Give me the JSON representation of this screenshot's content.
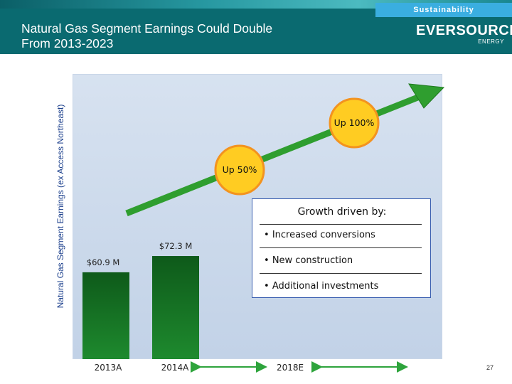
{
  "header": {
    "title_line1": "Natural Gas Segment Earnings Could Double",
    "title_line2": "From 2013-2023",
    "section": "Sustainability",
    "logo": "EVERSOURCE",
    "logo_sub": "ENERGY"
  },
  "chart_data": {
    "type": "bar",
    "ylabel": "Natural Gas Segment Earnings (ex Access Northeast)",
    "categories": [
      "2013A",
      "2014A",
      "2018E"
    ],
    "values": [
      60.9,
      72.3,
      null
    ],
    "data_labels": [
      "$60.9 M",
      "$72.3 M",
      ""
    ],
    "ylim": [
      0,
      200
    ],
    "annotations": [
      "Up 50%",
      "Up 100%"
    ],
    "colors": {
      "bar_top": "#0e5a1a",
      "bar_bottom": "#1e8a2e",
      "arrow": "#2f9e2f",
      "badge": "#ffcc22",
      "badge_border": "#f3931f",
      "range_arrow": "#2ea43c"
    }
  },
  "growth": {
    "title": "Growth driven by:",
    "items": [
      "Increased conversions",
      "New construction",
      "Additional investments"
    ]
  },
  "page_number": "27"
}
